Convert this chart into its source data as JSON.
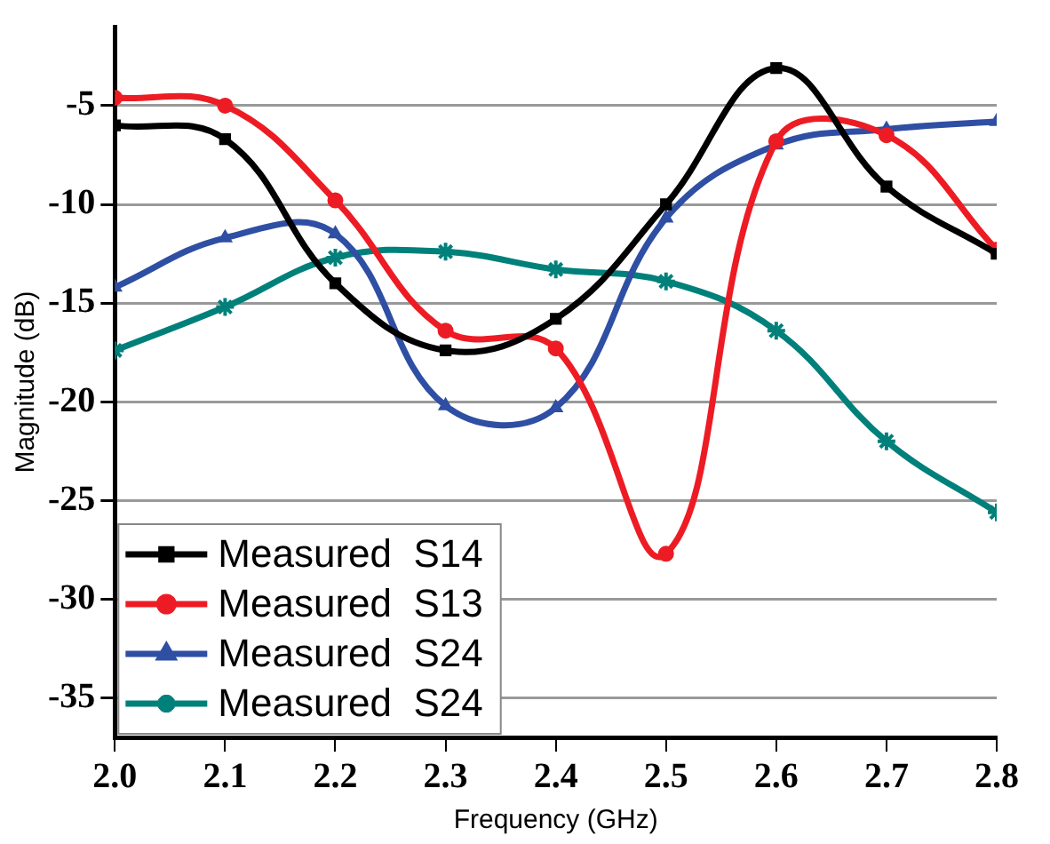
{
  "chart_data": {
    "type": "line",
    "xlabel": "Frequency (GHz)",
    "ylabel": "Magnitude (dB)",
    "x": [
      2.0,
      2.1,
      2.2,
      2.3,
      2.4,
      2.5,
      2.6,
      2.7,
      2.8
    ],
    "series": [
      {
        "name": "Measured  S14",
        "color": "#000000",
        "marker": "square",
        "values": [
          -6.0,
          -6.7,
          -14.0,
          -17.4,
          -15.8,
          -10.0,
          -3.1,
          -9.1,
          -12.5
        ]
      },
      {
        "name": "Measured  S13",
        "color": "#ed1c24",
        "marker": "circle",
        "values": [
          -4.6,
          -5.0,
          -9.8,
          -16.4,
          -17.3,
          -27.7,
          -6.8,
          -6.5,
          -12.3
        ]
      },
      {
        "name": "Measured  S24",
        "color": "#2e4fa3",
        "marker": "triangle",
        "values": [
          -14.2,
          -11.7,
          -11.5,
          -20.2,
          -20.3,
          -10.7,
          -7.0,
          -6.2,
          -5.8
        ]
      },
      {
        "name": "Measured  S24",
        "color": "#00807a",
        "marker": "cross",
        "values": [
          -17.4,
          -15.2,
          -12.7,
          -12.4,
          -13.3,
          -13.9,
          -16.4,
          -22.0,
          -25.6
        ]
      }
    ],
    "xlim": [
      2.0,
      2.8
    ],
    "xticks": [
      {
        "value": 2.0,
        "label": "2.0"
      },
      2.1,
      2.2,
      2.3,
      2.4,
      2.5,
      2.6,
      2.7,
      2.8
    ],
    "ylim": [
      -37,
      -1
    ],
    "yticks": [
      -35,
      -30,
      -25,
      -20,
      -15,
      -10,
      -5
    ],
    "grid": "y",
    "legend": "bottom left",
    "line_style": "solid"
  }
}
